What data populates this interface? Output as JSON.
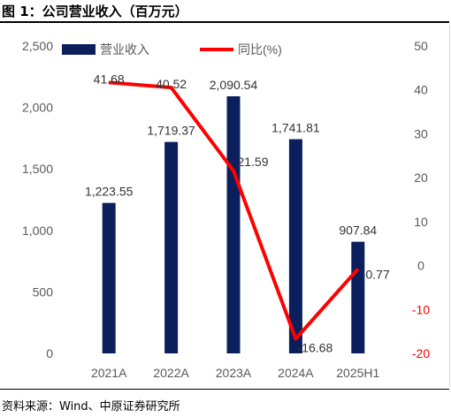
{
  "figure_title": "图 1：公司营业收入（百万元）",
  "source_note": "资料来源：Wind、中原证券研究所",
  "colors": {
    "bar": "#0b1f5c",
    "line": "#ff0000",
    "axis_text": "#595959",
    "neg_text": "#ff0000"
  },
  "chart_data": {
    "type": "bar",
    "categories": [
      "2021A",
      "2022A",
      "2023A",
      "2024A",
      "2025H1"
    ],
    "series": [
      {
        "name": "营业收入",
        "type": "bar",
        "axis": "left",
        "values": [
          1223.55,
          1719.37,
          2090.54,
          1741.81,
          907.84
        ],
        "labels": [
          "1,223.55",
          "1,719.37",
          "2,090.54",
          "1,741.81",
          "907.84"
        ]
      },
      {
        "name": "同比(%)",
        "type": "line",
        "axis": "right",
        "values": [
          41.68,
          40.52,
          21.59,
          -16.68,
          -0.77
        ],
        "labels": [
          "41.68",
          "40.52",
          "21.59",
          "-16.68",
          "-0.77"
        ]
      }
    ],
    "left_axis": {
      "ylim": [
        0,
        2500
      ],
      "ticks": [
        0,
        500,
        1000,
        1500,
        2000,
        2500
      ],
      "tick_labels": [
        "0",
        "500",
        "1,000",
        "1,500",
        "2,000",
        "2,500"
      ]
    },
    "right_axis": {
      "ylim": [
        -20,
        50
      ],
      "ticks": [
        -20,
        -10,
        0,
        10,
        20,
        30,
        40,
        50
      ],
      "tick_labels": [
        "-20",
        "-10",
        "0",
        "10",
        "20",
        "30",
        "40",
        "50"
      ]
    },
    "legend": "top-left",
    "grid": false
  }
}
